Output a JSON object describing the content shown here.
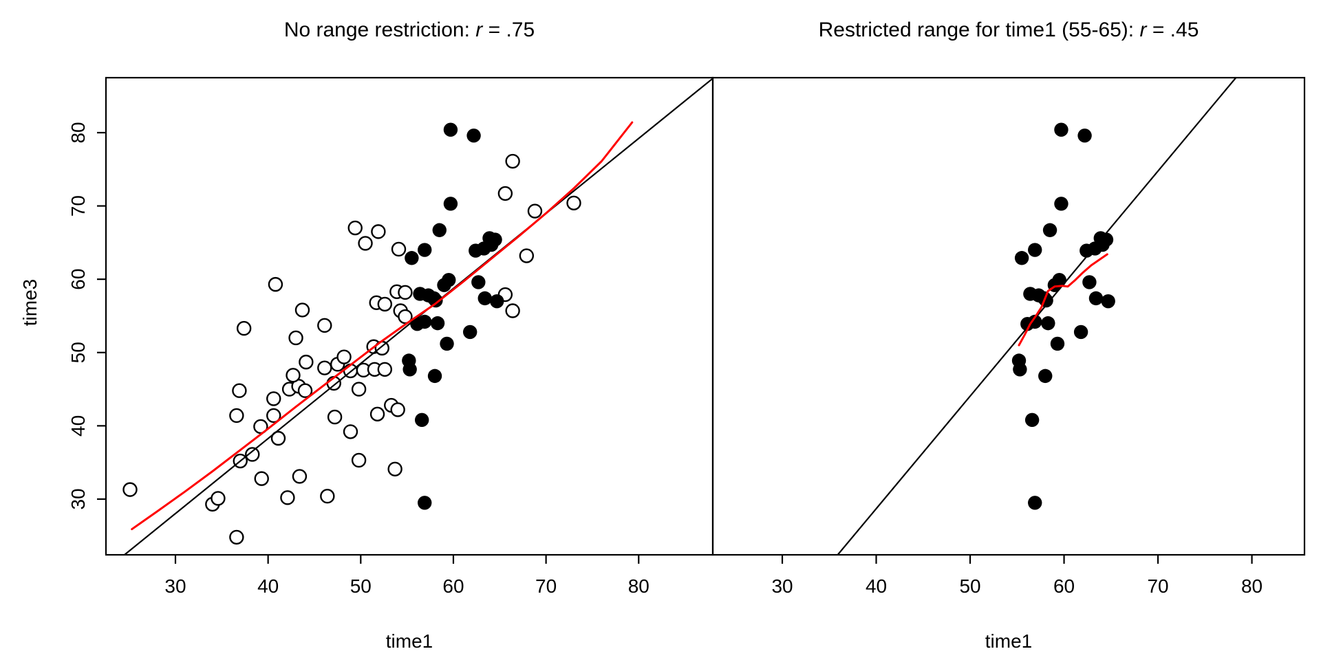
{
  "chart_data": {
    "type": "scatter",
    "layout_hint": "two side-by-side panels, shared y scale, white background, no grid",
    "colors": {
      "point": "#000000",
      "open_point_fill": "#ffffff",
      "fit_line": "#000000",
      "lowess_line": "#ff0000",
      "background": "#ffffff"
    },
    "shared": {
      "xlabel": "time1",
      "ylabel": "time3",
      "xticks": [
        30,
        40,
        50,
        60,
        70,
        80
      ],
      "yticks": [
        30,
        40,
        50,
        60,
        70,
        80
      ]
    },
    "open_points": [
      [
        25.1,
        31.3
      ],
      [
        34.0,
        29.3
      ],
      [
        34.6,
        30.1
      ],
      [
        36.6,
        24.8
      ],
      [
        37.0,
        35.2
      ],
      [
        38.3,
        36.1
      ],
      [
        39.3,
        32.8
      ],
      [
        42.1,
        30.2
      ],
      [
        43.4,
        33.1
      ],
      [
        46.4,
        30.4
      ],
      [
        36.6,
        41.4
      ],
      [
        36.9,
        44.8
      ],
      [
        39.2,
        39.9
      ],
      [
        40.6,
        43.7
      ],
      [
        40.6,
        41.4
      ],
      [
        41.1,
        38.3
      ],
      [
        42.3,
        45.0
      ],
      [
        43.3,
        45.4
      ],
      [
        44.0,
        44.8
      ],
      [
        42.7,
        46.9
      ],
      [
        44.1,
        48.7
      ],
      [
        43.0,
        52.0
      ],
      [
        37.4,
        53.3
      ],
      [
        40.8,
        59.3
      ],
      [
        43.7,
        55.8
      ],
      [
        46.1,
        53.7
      ],
      [
        46.1,
        47.9
      ],
      [
        47.5,
        48.4
      ],
      [
        48.2,
        49.4
      ],
      [
        47.1,
        45.8
      ],
      [
        49.8,
        45.0
      ],
      [
        48.9,
        47.5
      ],
      [
        50.3,
        47.6
      ],
      [
        51.5,
        47.7
      ],
      [
        52.6,
        47.7
      ],
      [
        51.4,
        50.8
      ],
      [
        52.3,
        50.6
      ],
      [
        47.2,
        41.2
      ],
      [
        48.9,
        39.2
      ],
      [
        49.8,
        35.3
      ],
      [
        53.7,
        34.1
      ],
      [
        51.8,
        41.6
      ],
      [
        53.3,
        42.8
      ],
      [
        54.0,
        42.2
      ],
      [
        49.4,
        67.0
      ],
      [
        50.5,
        64.9
      ],
      [
        51.9,
        66.5
      ],
      [
        54.1,
        64.1
      ],
      [
        53.9,
        58.3
      ],
      [
        54.8,
        58.2
      ],
      [
        51.7,
        56.8
      ],
      [
        52.6,
        56.6
      ],
      [
        54.3,
        55.7
      ],
      [
        54.8,
        54.9
      ],
      [
        65.6,
        71.7
      ],
      [
        66.4,
        76.1
      ],
      [
        68.8,
        69.3
      ],
      [
        73.0,
        70.4
      ],
      [
        67.9,
        63.2
      ],
      [
        65.6,
        57.9
      ],
      [
        66.4,
        55.7
      ]
    ],
    "filled_points": [
      [
        59.7,
        80.4
      ],
      [
        62.2,
        79.6
      ],
      [
        59.7,
        70.3
      ],
      [
        58.5,
        66.7
      ],
      [
        63.9,
        65.6
      ],
      [
        64.5,
        65.4
      ],
      [
        64.1,
        64.7
      ],
      [
        63.3,
        64.2
      ],
      [
        62.4,
        63.9
      ],
      [
        55.5,
        62.9
      ],
      [
        56.9,
        64.0
      ],
      [
        59.5,
        59.9
      ],
      [
        59.0,
        59.2
      ],
      [
        56.4,
        58.0
      ],
      [
        57.3,
        57.8
      ],
      [
        57.9,
        57.4
      ],
      [
        58.1,
        57.1
      ],
      [
        62.7,
        59.6
      ],
      [
        63.4,
        57.4
      ],
      [
        64.7,
        57.0
      ],
      [
        56.1,
        53.9
      ],
      [
        56.9,
        54.2
      ],
      [
        58.3,
        54.0
      ],
      [
        61.8,
        52.8
      ],
      [
        59.3,
        51.2
      ],
      [
        55.2,
        48.9
      ],
      [
        55.3,
        47.7
      ],
      [
        58.0,
        46.8
      ],
      [
        56.6,
        40.8
      ],
      [
        56.9,
        29.5
      ]
    ],
    "panels": [
      {
        "id": "left",
        "title_pre": "No range restriction: ",
        "title_var": "r",
        "title_post": " = .75",
        "correlation": 0.75,
        "xlim": [
          22.5,
          88.0
        ],
        "ylim": [
          22.4,
          87.5
        ],
        "show_open_points": true,
        "show_filled_points": true,
        "show_yticks": true,
        "fit_line": [
          [
            24.5,
            22.4
          ],
          [
            88.0,
            87.4
          ]
        ],
        "lowess": [
          [
            25.3,
            25.9
          ],
          [
            28,
            28.3
          ],
          [
            31,
            31.0
          ],
          [
            34,
            33.8
          ],
          [
            37,
            36.7
          ],
          [
            40,
            39.6
          ],
          [
            43,
            42.6
          ],
          [
            46,
            45.5
          ],
          [
            49,
            48.4
          ],
          [
            52,
            51.3
          ],
          [
            55,
            54.0
          ],
          [
            58,
            56.6
          ],
          [
            61,
            59.6
          ],
          [
            64,
            62.7
          ],
          [
            67,
            65.8
          ],
          [
            70,
            69.0
          ],
          [
            73,
            72.4
          ],
          [
            76,
            76.1
          ],
          [
            79.3,
            81.4
          ]
        ]
      },
      {
        "id": "right",
        "title_pre": "Restricted range for time1 (55-65): ",
        "title_var": "r",
        "title_post": " = .45",
        "correlation": 0.45,
        "xlim": [
          22.6,
          85.6
        ],
        "ylim": [
          22.4,
          87.5
        ],
        "show_open_points": false,
        "show_filled_points": true,
        "show_yticks": false,
        "fit_line": [
          [
            35.9,
            22.4
          ],
          [
            78.3,
            87.5
          ]
        ],
        "lowess": [
          [
            55.2,
            51.0
          ],
          [
            55.8,
            52.4
          ],
          [
            56.4,
            53.9
          ],
          [
            57.0,
            55.0
          ],
          [
            57.6,
            56.2
          ],
          [
            58.3,
            58.4
          ],
          [
            59.0,
            59.0
          ],
          [
            59.8,
            59.1
          ],
          [
            60.4,
            59.0
          ],
          [
            61.2,
            59.9
          ],
          [
            62.0,
            60.9
          ],
          [
            62.9,
            61.9
          ],
          [
            63.8,
            62.7
          ],
          [
            64.6,
            63.4
          ]
        ]
      }
    ]
  }
}
